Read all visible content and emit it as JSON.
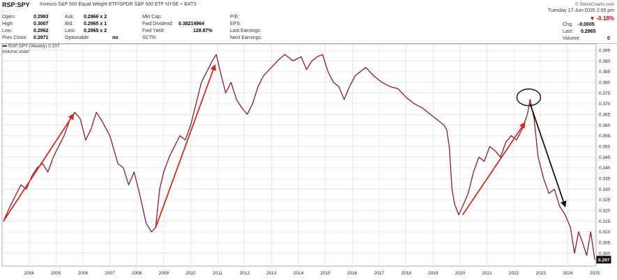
{
  "header": {
    "symbol": "RSP:SPY",
    "description": "Invesco S&P 500 Equal Weight ETF/SPDR S&P 500 ETF  NYSE + BATS",
    "logo": "© StockCharts.com",
    "date": "Tuesday 17-Jun-2025  2:35 pm",
    "change_pct": "-0.18%",
    "fields": [
      {
        "label": "Open:",
        "value": "0.2983"
      },
      {
        "label": "High:",
        "value": "0.3007"
      },
      {
        "label": "Low:",
        "value": "0.2962"
      },
      {
        "label": "Prev Close:",
        "value": "0.2971"
      },
      {
        "label": "Ask:",
        "value": "0.2966 x 2"
      },
      {
        "label": "Bid:",
        "value": "0.2965 x 1"
      },
      {
        "label": "Last:",
        "value": "0.2965 x 2"
      },
      {
        "label": "Optionable:",
        "value": "no"
      },
      {
        "label": "Mkt Cap:",
        "value": ""
      },
      {
        "label": "Fwd Dividend:",
        "value": "0.38214964"
      },
      {
        "label": "Fwd Yield:",
        "value": "128.87%"
      },
      {
        "label": "SCTR:",
        "value": ""
      },
      {
        "label": "P/E:",
        "value": ""
      },
      {
        "label": "EPS:",
        "value": ""
      },
      {
        "label": "Last Earnings:",
        "value": ""
      },
      {
        "label": "Next Earnings:",
        "value": ""
      },
      {
        "label": "Chg:",
        "value": "-0.0005"
      },
      {
        "label": "Last:",
        "value": "0.2965"
      },
      {
        "label": "Volume:",
        "value": "0"
      }
    ]
  },
  "legend": {
    "series_line": "RSP:SPY (Weekly) 0.297",
    "volume_line": "Volume undef"
  },
  "chart_data": {
    "type": "line",
    "title": "RSP:SPY",
    "ylim": [
      0.294,
      0.398
    ],
    "xlim": [
      2003.5,
      2025.55
    ],
    "y_ticks": [
      0.3,
      0.305,
      0.31,
      0.315,
      0.32,
      0.325,
      0.33,
      0.335,
      0.34,
      0.345,
      0.35,
      0.355,
      0.36,
      0.365,
      0.37,
      0.375,
      0.38,
      0.385,
      0.39,
      0.395
    ],
    "x_ticks": [
      "2004",
      "2005",
      "2006",
      "2007",
      "2008",
      "2009",
      "2010",
      "2011",
      "2012",
      "2013",
      "2014",
      "2015",
      "2016",
      "2017",
      "2018",
      "2019",
      "2020",
      "2021",
      "2022",
      "2023",
      "2024",
      "2025"
    ],
    "last_value_label": "0.297",
    "series": [
      {
        "values": [
          [
            2003.55,
            0.315
          ],
          [
            2003.8,
            0.322
          ],
          [
            2004.0,
            0.327
          ],
          [
            2004.2,
            0.332
          ],
          [
            2004.4,
            0.33
          ],
          [
            2004.6,
            0.336
          ],
          [
            2004.8,
            0.34
          ],
          [
            2005.0,
            0.342
          ],
          [
            2005.2,
            0.338
          ],
          [
            2005.4,
            0.345
          ],
          [
            2005.6,
            0.35
          ],
          [
            2005.8,
            0.355
          ],
          [
            2006.0,
            0.362
          ],
          [
            2006.2,
            0.366
          ],
          [
            2006.4,
            0.363
          ],
          [
            2006.6,
            0.353
          ],
          [
            2006.8,
            0.358
          ],
          [
            2007.0,
            0.366
          ],
          [
            2007.2,
            0.362
          ],
          [
            2007.5,
            0.355
          ],
          [
            2007.8,
            0.342
          ],
          [
            2008.0,
            0.34
          ],
          [
            2008.2,
            0.332
          ],
          [
            2008.4,
            0.338
          ],
          [
            2008.6,
            0.328
          ],
          [
            2008.85,
            0.314
          ],
          [
            2009.05,
            0.31
          ],
          [
            2009.2,
            0.312
          ],
          [
            2009.35,
            0.33
          ],
          [
            2009.5,
            0.338
          ],
          [
            2009.7,
            0.345
          ],
          [
            2009.9,
            0.35
          ],
          [
            2010.1,
            0.355
          ],
          [
            2010.3,
            0.353
          ],
          [
            2010.5,
            0.36
          ],
          [
            2010.7,
            0.37
          ],
          [
            2010.9,
            0.38
          ],
          [
            2011.1,
            0.385
          ],
          [
            2011.3,
            0.39
          ],
          [
            2011.45,
            0.393
          ],
          [
            2011.6,
            0.385
          ],
          [
            2011.8,
            0.375
          ],
          [
            2012.0,
            0.38
          ],
          [
            2012.2,
            0.372
          ],
          [
            2012.4,
            0.368
          ],
          [
            2012.6,
            0.365
          ],
          [
            2012.8,
            0.37
          ],
          [
            2013.0,
            0.378
          ],
          [
            2013.2,
            0.383
          ],
          [
            2013.5,
            0.387
          ],
          [
            2013.8,
            0.391
          ],
          [
            2014.0,
            0.393
          ],
          [
            2014.3,
            0.39
          ],
          [
            2014.6,
            0.392
          ],
          [
            2014.8,
            0.386
          ],
          [
            2015.0,
            0.39
          ],
          [
            2015.2,
            0.392
          ],
          [
            2015.4,
            0.393
          ],
          [
            2015.6,
            0.385
          ],
          [
            2015.8,
            0.38
          ],
          [
            2016.0,
            0.378
          ],
          [
            2016.2,
            0.372
          ],
          [
            2016.4,
            0.378
          ],
          [
            2016.6,
            0.383
          ],
          [
            2016.8,
            0.385
          ],
          [
            2017.0,
            0.387
          ],
          [
            2017.3,
            0.383
          ],
          [
            2017.6,
            0.38
          ],
          [
            2017.9,
            0.378
          ],
          [
            2018.2,
            0.377
          ],
          [
            2018.5,
            0.373
          ],
          [
            2018.8,
            0.37
          ],
          [
            2019.1,
            0.368
          ],
          [
            2019.4,
            0.365
          ],
          [
            2019.7,
            0.362
          ],
          [
            2019.9,
            0.36
          ],
          [
            2020.0,
            0.358
          ],
          [
            2020.1,
            0.35
          ],
          [
            2020.2,
            0.33
          ],
          [
            2020.3,
            0.323
          ],
          [
            2020.45,
            0.318
          ],
          [
            2020.6,
            0.322
          ],
          [
            2020.8,
            0.328
          ],
          [
            2021.0,
            0.338
          ],
          [
            2021.2,
            0.345
          ],
          [
            2021.4,
            0.343
          ],
          [
            2021.6,
            0.35
          ],
          [
            2021.8,
            0.348
          ],
          [
            2022.0,
            0.345
          ],
          [
            2022.2,
            0.352
          ],
          [
            2022.4,
            0.355
          ],
          [
            2022.6,
            0.353
          ],
          [
            2022.8,
            0.358
          ],
          [
            2023.0,
            0.365
          ],
          [
            2023.1,
            0.372
          ],
          [
            2023.25,
            0.363
          ],
          [
            2023.4,
            0.345
          ],
          [
            2023.6,
            0.335
          ],
          [
            2023.8,
            0.328
          ],
          [
            2024.0,
            0.33
          ],
          [
            2024.2,
            0.322
          ],
          [
            2024.4,
            0.318
          ],
          [
            2024.6,
            0.312
          ],
          [
            2024.75,
            0.3
          ],
          [
            2024.9,
            0.31
          ],
          [
            2025.05,
            0.305
          ],
          [
            2025.2,
            0.299
          ],
          [
            2025.35,
            0.31
          ],
          [
            2025.5,
            0.297
          ]
        ],
        "color": "#8b1a2b"
      }
    ],
    "annotations": [
      {
        "type": "arrow",
        "color": "#d62a1e",
        "from": [
          2003.55,
          0.315
        ],
        "to": [
          2006.15,
          0.365
        ]
      },
      {
        "type": "arrow",
        "color": "#d62a1e",
        "from": [
          2009.2,
          0.312
        ],
        "to": [
          2011.4,
          0.388
        ]
      },
      {
        "type": "arrow",
        "color": "#d62a1e",
        "from": [
          2020.6,
          0.318
        ],
        "to": [
          2022.9,
          0.361
        ]
      },
      {
        "type": "arrow",
        "color": "#111111",
        "from": [
          2023.1,
          0.37
        ],
        "to": [
          2024.4,
          0.322
        ]
      },
      {
        "type": "ellipse",
        "color": "#111111",
        "center": [
          2023.05,
          0.372
        ]
      }
    ],
    "grid": true
  },
  "colors": {
    "series": "#8b1a2b",
    "up_arrow": "#d62a1e",
    "down_arrow": "#111111",
    "grid": "#d9d9d9",
    "change_negative": "#c00000"
  }
}
